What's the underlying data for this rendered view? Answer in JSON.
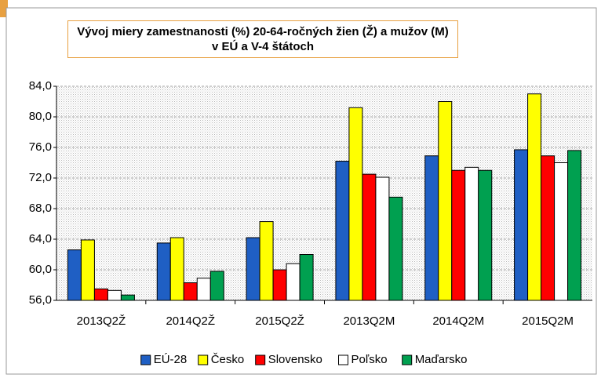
{
  "chart_data": {
    "type": "bar",
    "title": "Vývoj miery zamestnanosti (%) 20-64-ročných žien (Ž) a mužov (M) v EÚ a V-4 štátoch",
    "categories": [
      "2013Q2Ž",
      "2014Q2Ž",
      "2015Q2Ž",
      "2013Q2M",
      "2014Q2M",
      "2015Q2M"
    ],
    "series": [
      {
        "name": "EÚ-28",
        "color": "#1f5fc4",
        "values": [
          62.6,
          63.5,
          64.2,
          74.2,
          74.9,
          75.7
        ]
      },
      {
        "name": "Česko",
        "color": "#ffff00",
        "values": [
          63.9,
          64.2,
          66.3,
          81.2,
          82.0,
          83.0
        ]
      },
      {
        "name": "Slovensko",
        "color": "#ff0000",
        "values": [
          57.5,
          58.3,
          60.0,
          72.5,
          73.0,
          74.9
        ]
      },
      {
        "name": "Poľsko",
        "color": "#ffffff",
        "values": [
          57.3,
          58.9,
          60.8,
          72.1,
          73.4,
          74.0
        ]
      },
      {
        "name": "Maďarsko",
        "color": "#00a050",
        "values": [
          56.7,
          59.8,
          62.0,
          69.5,
          73.0,
          75.6
        ]
      }
    ],
    "ylim": [
      56,
      84
    ],
    "yticks": [
      {
        "value": 56,
        "label": "56,0"
      },
      {
        "value": 60,
        "label": "60,0"
      },
      {
        "value": 64,
        "label": "64,0"
      },
      {
        "value": 68,
        "label": "68,0"
      },
      {
        "value": 72,
        "label": "72,0"
      },
      {
        "value": 76,
        "label": "76,0"
      },
      {
        "value": 80,
        "label": "80,0"
      },
      {
        "value": 84,
        "label": "84,0"
      }
    ],
    "grid": true,
    "legend": "bottom"
  }
}
